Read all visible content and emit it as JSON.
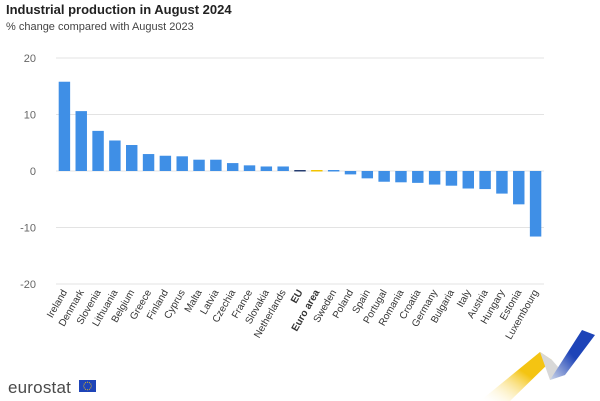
{
  "header": {
    "title": "Industrial production in August 2024",
    "subtitle": "% change compared with August 2023"
  },
  "footer": {
    "brand": "eurostat"
  },
  "colors": {
    "bar": "#3f8fe6",
    "eu_bar": "#263d70",
    "euro_area_bar": "#f2c300",
    "grid": "#e3e3e3",
    "axis_text": "#666666",
    "brand_yellow": "#f4c412",
    "brand_blue": "#1e44b8"
  },
  "chart_data": {
    "type": "bar",
    "title": "Industrial production in August 2024",
    "subtitle": "% change compared with August 2023",
    "xlabel": "",
    "ylabel": "",
    "ylim": [
      -20,
      20
    ],
    "yticks": [
      20,
      10,
      0,
      -10,
      -20
    ],
    "grid": true,
    "legend": "none",
    "categories": [
      "Ireland",
      "Denmark",
      "Slovenia",
      "Lithuania",
      "Belgium",
      "Greece",
      "Finland",
      "Cyprus",
      "Malta",
      "Latvia",
      "Czechia",
      "France",
      "Slovakia",
      "Netherlands",
      "EU",
      "Euro area",
      "Sweden",
      "Poland",
      "Spain",
      "Portugal",
      "Romania",
      "Croatia",
      "Germany",
      "Bulgaria",
      "Italy",
      "Austria",
      "Hungary",
      "Estonia",
      "Luxembourg"
    ],
    "bold_categories": [
      "EU",
      "Euro area"
    ],
    "values": [
      15.8,
      10.6,
      7.1,
      5.4,
      4.6,
      3.0,
      2.7,
      2.6,
      2.0,
      2.0,
      1.4,
      1.0,
      0.8,
      0.8,
      0.0,
      0.1,
      0.0,
      -0.6,
      -1.3,
      -1.9,
      -2.0,
      -2.1,
      -2.4,
      -2.6,
      -3.1,
      -3.2,
      -4.0,
      -5.9,
      -11.6
    ]
  }
}
